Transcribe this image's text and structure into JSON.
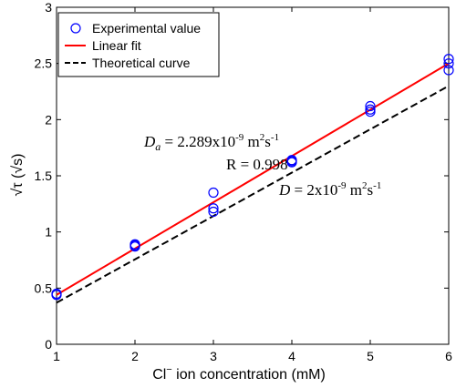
{
  "chart_data": {
    "type": "scatter",
    "xlabel_parts": {
      "base": "Cl",
      "sup": "−",
      "rest": " ion concentration (mM)"
    },
    "ylabel": "√τ (√s)",
    "xlim": [
      1,
      6
    ],
    "ylim": [
      0,
      3
    ],
    "x_ticks": [
      1,
      2,
      3,
      4,
      5,
      6
    ],
    "y_ticks": [
      0,
      0.5,
      1,
      1.5,
      2,
      2.5,
      3
    ],
    "y_tick_labels": [
      "0",
      "0.5",
      "1",
      "1.5",
      "2",
      "2.5",
      "3"
    ],
    "grid": false,
    "legend_position": "top-left",
    "series": [
      {
        "name": "Experimental value",
        "kind": "markers",
        "marker": "open-circle",
        "color": "#0000ff",
        "points": [
          [
            1,
            0.44
          ],
          [
            1,
            0.45
          ],
          [
            2,
            0.87
          ],
          [
            2,
            0.88
          ],
          [
            2,
            0.89
          ],
          [
            3,
            1.18
          ],
          [
            3,
            1.21
          ],
          [
            3,
            1.35
          ],
          [
            4,
            1.62
          ],
          [
            4,
            1.63
          ],
          [
            4,
            1.64
          ],
          [
            5,
            2.07
          ],
          [
            5,
            2.09
          ],
          [
            5,
            2.12
          ],
          [
            6,
            2.44
          ],
          [
            6,
            2.5
          ],
          [
            6,
            2.54
          ]
        ]
      },
      {
        "name": "Linear fit",
        "kind": "line",
        "style": "solid",
        "color": "#ff0000",
        "points": [
          [
            1,
            0.44
          ],
          [
            6,
            2.5
          ]
        ]
      },
      {
        "name": "Theoretical curve",
        "kind": "line",
        "style": "dashed",
        "color": "#000000",
        "points": [
          [
            1,
            0.37
          ],
          [
            6,
            2.3
          ]
        ]
      }
    ],
    "annotations": {
      "fit": {
        "symbol": "D",
        "sub": "a",
        "text1": " = 2.289x10",
        "exp": "-9",
        "unit1": " m",
        "unit_exp1": "2",
        "unit2": "s",
        "unit_exp2": "-1"
      },
      "r_value": "R = 0.998",
      "theory": {
        "symbol": "D",
        "text1": " = 2x10",
        "exp": "-9",
        "unit1": " m",
        "unit_exp1": "2",
        "unit2": "s",
        "unit_exp2": "-1"
      }
    }
  }
}
